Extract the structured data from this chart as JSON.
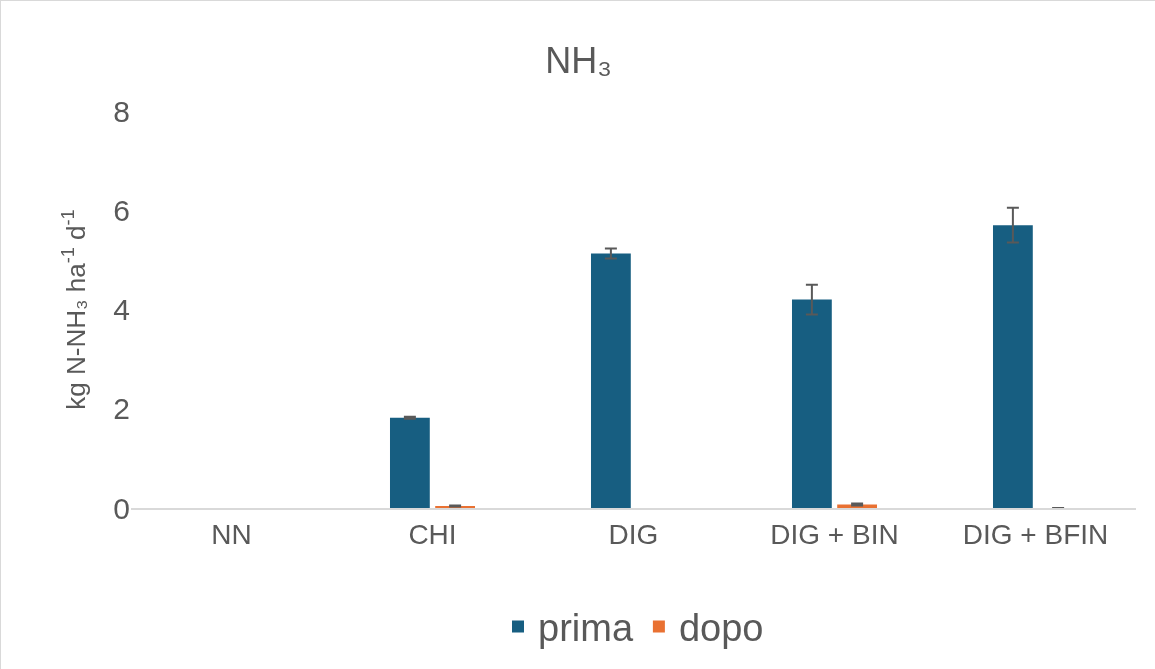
{
  "chart_data": {
    "type": "bar",
    "title": "NH₃",
    "ylabel": "kg N-NH₃ ha$^{-1}$ d$^{-1}$",
    "categories": [
      "NN",
      "CHI",
      "DIG",
      "DIG + BIN",
      "DIG + BFIN"
    ],
    "series": [
      {
        "name": "prima",
        "color": "#175e81",
        "values": [
          null,
          1.82,
          5.13,
          4.2,
          5.7
        ],
        "errors": [
          null,
          0.02,
          0.1,
          0.3,
          0.35
        ]
      },
      {
        "name": "dopo",
        "color": "#e97132",
        "values": [
          null,
          0.04,
          null,
          0.07,
          0
        ],
        "errors": [
          null,
          0.01,
          null,
          0.02,
          null
        ]
      }
    ],
    "ylim": [
      0,
      8
    ],
    "yticks": [
      0,
      2,
      4,
      6,
      8
    ],
    "grid": false,
    "legend": "bottom"
  }
}
